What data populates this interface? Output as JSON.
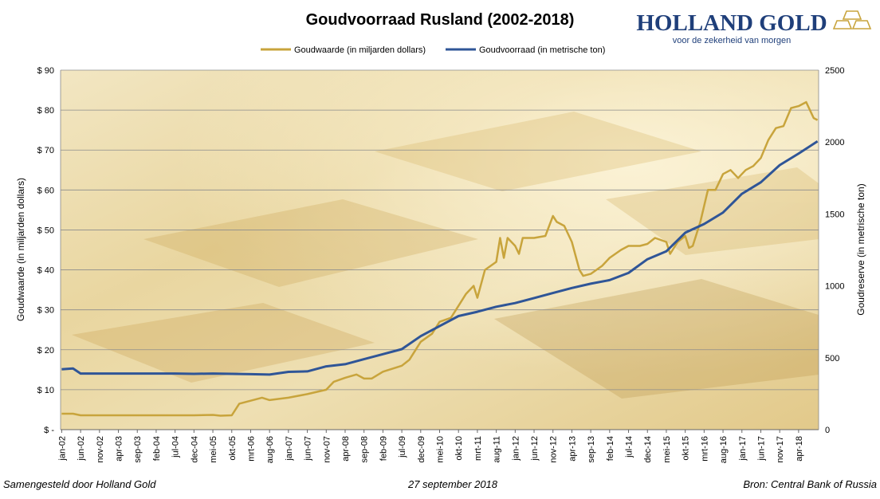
{
  "header": {
    "title": "Goudvoorraad Rusland (2002-2018)",
    "logo_name": "HOLLAND GOLD",
    "logo_tagline": "voor de zekerheid van morgen"
  },
  "footer": {
    "left": "Samengesteld door Holland Gold",
    "center": "27 september 2018",
    "right": "Bron: Central Bank of Russia"
  },
  "colors": {
    "gold_series": "#C8A43C",
    "reserve_series": "#2F5597",
    "title_logo": "#1F3F7A",
    "gridline": "#8C8C8C"
  },
  "chart_data": {
    "type": "line",
    "xlabel": "",
    "ylabel_left": "Goudwaarde  (in miljarden dollars)",
    "ylabel_right": "Goudreserve  (in metrische ton)",
    "ylim_left": [
      0,
      90
    ],
    "ylim_right": [
      0,
      2500
    ],
    "yticks_left": [
      "$ -",
      "$ 10",
      "$ 20",
      "$ 30",
      "$ 40",
      "$ 50",
      "$ 60",
      "$ 70",
      "$ 80",
      "$ 90"
    ],
    "yticks_right": [
      "0",
      "500",
      "1000",
      "1500",
      "2000",
      "2500"
    ],
    "grid": true,
    "legend_position": "top-center",
    "x_tick_labels": [
      "jan-02",
      "jun-02",
      "nov-02",
      "apr-03",
      "sep-03",
      "feb-04",
      "jul-04",
      "dec-04",
      "mei-05",
      "okt-05",
      "mrt-06",
      "aug-06",
      "jan-07",
      "jun-07",
      "nov-07",
      "apr-08",
      "sep-08",
      "feb-09",
      "jul-09",
      "dec-09",
      "mei-10",
      "okt-10",
      "mrt-11",
      "aug-11",
      "jan-12",
      "jun-12",
      "nov-12",
      "apr-13",
      "sep-13",
      "feb-14",
      "jul-14",
      "dec-14",
      "mei-15",
      "okt-15",
      "mrt-16",
      "aug-16",
      "jan-17",
      "jun-17",
      "nov-17",
      "apr-18"
    ],
    "x_range": [
      "jan-02",
      "sep-18"
    ],
    "series": [
      {
        "name": "Goudwaarde  (in miljarden dollars)",
        "axis": "left",
        "points": [
          [
            "jan-02",
            4
          ],
          [
            "apr-02",
            4
          ],
          [
            "jun-02",
            3.6
          ],
          [
            "nov-02",
            3.6
          ],
          [
            "apr-03",
            3.6
          ],
          [
            "sep-03",
            3.6
          ],
          [
            "feb-04",
            3.6
          ],
          [
            "jul-04",
            3.6
          ],
          [
            "dec-04",
            3.6
          ],
          [
            "mei-05",
            3.7
          ],
          [
            "jul-05",
            3.5
          ],
          [
            "okt-05",
            3.6
          ],
          [
            "dec-05",
            6.5
          ],
          [
            "feb-06",
            7
          ],
          [
            "jun-06",
            8
          ],
          [
            "aug-06",
            7.4
          ],
          [
            "jan-07",
            8
          ],
          [
            "jun-07",
            8.9
          ],
          [
            "nov-07",
            10
          ],
          [
            "jan-08",
            12
          ],
          [
            "apr-08",
            13
          ],
          [
            "jul-08",
            13.8
          ],
          [
            "sep-08",
            12.8
          ],
          [
            "nov-08",
            12.8
          ],
          [
            "feb-09",
            14.5
          ],
          [
            "jul-09",
            16
          ],
          [
            "sep-09",
            17.5
          ],
          [
            "dec-09",
            22
          ],
          [
            "mar-10",
            24
          ],
          [
            "mei-10",
            27
          ],
          [
            "aug-10",
            28
          ],
          [
            "okt-10",
            31
          ],
          [
            "dec-10",
            34
          ],
          [
            "feb-11",
            36
          ],
          [
            "mrt-11",
            33
          ],
          [
            "mei-11",
            40
          ],
          [
            "aug-11",
            42
          ],
          [
            "sep-11",
            48
          ],
          [
            "okt-11",
            43
          ],
          [
            "nov-11",
            48
          ],
          [
            "jan-12",
            46
          ],
          [
            "feb-12",
            44
          ],
          [
            "mar-12",
            48
          ],
          [
            "jun-12",
            48
          ],
          [
            "sep-12",
            48.5
          ],
          [
            "nov-12",
            53.5
          ],
          [
            "dec-12",
            52
          ],
          [
            "feb-13",
            51
          ],
          [
            "apr-13",
            47
          ],
          [
            "jun-13",
            40
          ],
          [
            "jul-13",
            38.5
          ],
          [
            "sep-13",
            39
          ],
          [
            "dec-13",
            41
          ],
          [
            "feb-14",
            43
          ],
          [
            "mei-14",
            45
          ],
          [
            "jul-14",
            46
          ],
          [
            "okt-14",
            46
          ],
          [
            "dec-14",
            46.5
          ],
          [
            "feb-15",
            48
          ],
          [
            "mei-15",
            47
          ],
          [
            "jun-15",
            44
          ],
          [
            "aug-15",
            47
          ],
          [
            "okt-15",
            48.5
          ],
          [
            "nov-15",
            45.5
          ],
          [
            "dec-15",
            46
          ],
          [
            "feb-16",
            52
          ],
          [
            "apr-16",
            60
          ],
          [
            "jun-16",
            60
          ],
          [
            "aug-16",
            64
          ],
          [
            "okt-16",
            65
          ],
          [
            "dec-16",
            63
          ],
          [
            "feb-17",
            65
          ],
          [
            "apr-17",
            66
          ],
          [
            "jun-17",
            68
          ],
          [
            "aug-17",
            72.5
          ],
          [
            "okt-17",
            75.5
          ],
          [
            "dec-17",
            76
          ],
          [
            "feb-18",
            80.5
          ],
          [
            "apr-18",
            81
          ],
          [
            "jun-18",
            82
          ],
          [
            "aug-18",
            78
          ],
          [
            "sep-18",
            77.5
          ]
        ]
      },
      {
        "name": "Goudvoorraad  (in metrische ton)",
        "axis": "right",
        "points": [
          [
            "jan-02",
            420
          ],
          [
            "apr-02",
            425
          ],
          [
            "jun-02",
            390
          ],
          [
            "nov-02",
            390
          ],
          [
            "apr-03",
            390
          ],
          [
            "sep-03",
            390
          ],
          [
            "feb-04",
            390
          ],
          [
            "jul-04",
            390
          ],
          [
            "dec-04",
            388
          ],
          [
            "mei-05",
            390
          ],
          [
            "okt-05",
            388
          ],
          [
            "mrt-06",
            386
          ],
          [
            "aug-06",
            383
          ],
          [
            "jan-07",
            402
          ],
          [
            "jun-07",
            405
          ],
          [
            "nov-07",
            440
          ],
          [
            "apr-08",
            455
          ],
          [
            "sep-08",
            490
          ],
          [
            "feb-09",
            525
          ],
          [
            "jul-09",
            560
          ],
          [
            "dec-09",
            650
          ],
          [
            "mei-10",
            720
          ],
          [
            "okt-10",
            790
          ],
          [
            "mrt-11",
            820
          ],
          [
            "aug-11",
            855
          ],
          [
            "jan-12",
            880
          ],
          [
            "jun-12",
            915
          ],
          [
            "nov-12",
            950
          ],
          [
            "apr-13",
            985
          ],
          [
            "sep-13",
            1015
          ],
          [
            "feb-14",
            1040
          ],
          [
            "jul-14",
            1090
          ],
          [
            "dec-14",
            1185
          ],
          [
            "mei-15",
            1240
          ],
          [
            "okt-15",
            1370
          ],
          [
            "mrt-16",
            1430
          ],
          [
            "aug-16",
            1510
          ],
          [
            "jan-17",
            1640
          ],
          [
            "jun-17",
            1720
          ],
          [
            "nov-17",
            1840
          ],
          [
            "apr-18",
            1920
          ],
          [
            "sep-18",
            2005
          ]
        ]
      }
    ]
  }
}
